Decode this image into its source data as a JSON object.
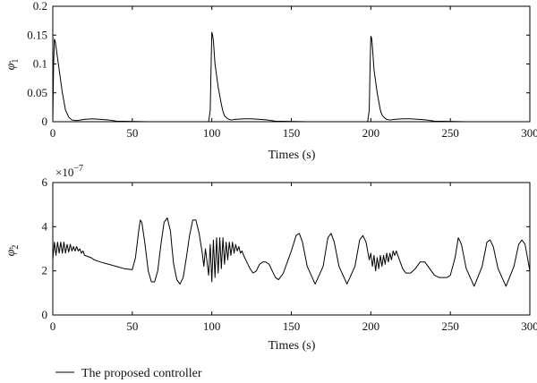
{
  "chart_data": [
    {
      "type": "line",
      "xlabel": "Times (s)",
      "ylabel_base": "φ",
      "ylabel_sub": "1",
      "xlim": [
        0,
        300
      ],
      "ylim": [
        0,
        0.2
      ],
      "xticks": [
        "0",
        "50",
        "100",
        "150",
        "200",
        "250",
        "300"
      ],
      "yticks": [
        "0",
        "0.05",
        "0.1",
        "0.15",
        "0.2"
      ],
      "grid": false,
      "series": [
        {
          "x": [
            0,
            0.5,
            1,
            1.5,
            2,
            3,
            4,
            5,
            6,
            7,
            8,
            10,
            12,
            15,
            20,
            25,
            30,
            35,
            40,
            60,
            80,
            98,
            99,
            99.5,
            100,
            100.5,
            101,
            101.5,
            102,
            103,
            104,
            105,
            106,
            107,
            108,
            110,
            112,
            115,
            120,
            125,
            130,
            135,
            140,
            160,
            180,
            198,
            199,
            199.5,
            200,
            200.5,
            201,
            201.5,
            202,
            203,
            204,
            205,
            206,
            207,
            208,
            210,
            212,
            215,
            220,
            225,
            230,
            235,
            240,
            260,
            280,
            300
          ],
          "y": [
            0,
            0.1,
            0.143,
            0.14,
            0.13,
            0.11,
            0.09,
            0.07,
            0.05,
            0.035,
            0.02,
            0.008,
            0.003,
            0.002,
            0.004,
            0.005,
            0.004,
            0.003,
            0.001,
            0,
            0,
            0,
            0.02,
            0.09,
            0.155,
            0.15,
            0.14,
            0.12,
            0.1,
            0.08,
            0.06,
            0.045,
            0.03,
            0.018,
            0.01,
            0.005,
            0.003,
            0.004,
            0.005,
            0.005,
            0.004,
            0.003,
            0.001,
            0,
            0,
            0,
            0.02,
            0.09,
            0.148,
            0.145,
            0.13,
            0.11,
            0.09,
            0.07,
            0.05,
            0.035,
            0.02,
            0.012,
            0.008,
            0.004,
            0.003,
            0.004,
            0.005,
            0.005,
            0.004,
            0.003,
            0.001,
            0,
            0,
            0
          ]
        }
      ]
    },
    {
      "type": "line",
      "xlabel": "Times (s)",
      "ylabel_base": "φ",
      "ylabel_sub": "2",
      "exponent_base": "×10",
      "exponent_power": "−7",
      "xlim": [
        0,
        300
      ],
      "ylim": [
        0,
        6
      ],
      "xticks": [
        "0",
        "50",
        "100",
        "150",
        "200",
        "250",
        "300"
      ],
      "yticks": [
        "0",
        "2",
        "4",
        "6"
      ],
      "grid": false,
      "series": [
        {
          "name": "The proposed controller",
          "x": [
            0,
            1,
            2,
            3,
            4,
            5,
            6,
            7,
            8,
            9,
            10,
            11,
            12,
            13,
            14,
            15,
            16,
            17,
            18,
            19,
            20,
            22,
            24,
            26,
            28,
            30,
            35,
            40,
            45,
            50,
            52,
            54,
            55,
            56,
            58,
            60,
            62,
            64,
            66,
            68,
            70,
            72,
            74,
            75,
            76,
            78,
            80,
            82,
            84,
            86,
            88,
            90,
            92,
            94,
            95,
            96,
            98,
            99,
            100,
            101,
            102,
            103,
            104,
            105,
            106,
            107,
            108,
            109,
            110,
            111,
            112,
            113,
            114,
            115,
            116,
            117,
            118,
            119,
            120,
            122,
            124,
            126,
            128,
            130,
            132,
            134,
            136,
            138,
            140,
            142,
            145,
            150,
            153,
            155,
            157,
            160,
            165,
            170,
            173,
            175,
            177,
            180,
            185,
            190,
            193,
            195,
            197,
            199,
            200,
            201,
            202,
            203,
            204,
            205,
            206,
            207,
            208,
            209,
            210,
            211,
            212,
            213,
            214,
            215,
            216,
            218,
            220,
            222,
            225,
            228,
            231,
            234,
            237,
            240,
            243,
            246,
            248,
            250,
            253,
            255,
            257,
            260,
            265,
            270,
            273,
            275,
            277,
            280,
            285,
            290,
            293,
            295,
            297,
            300
          ],
          "y": [
            2.5,
            3.3,
            2.7,
            3.3,
            2.8,
            3.3,
            2.8,
            3.3,
            2.8,
            3.2,
            2.85,
            3.2,
            2.9,
            3.1,
            2.9,
            3.1,
            2.9,
            3.0,
            2.8,
            2.9,
            2.7,
            2.65,
            2.6,
            2.5,
            2.45,
            2.4,
            2.3,
            2.2,
            2.1,
            2.05,
            2.6,
            3.8,
            4.3,
            4.2,
            3.2,
            2.0,
            1.5,
            1.5,
            2.0,
            3.2,
            4.2,
            4.4,
            3.8,
            3.0,
            2.3,
            1.6,
            1.4,
            1.7,
            2.6,
            3.6,
            4.3,
            4.3,
            3.7,
            2.8,
            2.2,
            3.0,
            1.8,
            3.2,
            1.5,
            3.4,
            1.7,
            3.5,
            1.9,
            3.5,
            2.1,
            3.5,
            2.3,
            3.3,
            2.5,
            3.3,
            2.7,
            3.3,
            2.8,
            3.2,
            2.9,
            3.1,
            2.8,
            2.9,
            2.7,
            2.4,
            2.1,
            1.9,
            2.0,
            2.3,
            2.4,
            2.4,
            2.3,
            2.0,
            1.7,
            1.6,
            1.9,
            2.9,
            3.6,
            3.7,
            3.3,
            2.2,
            1.4,
            2.2,
            3.5,
            3.7,
            3.3,
            2.2,
            1.4,
            2.2,
            3.4,
            3.6,
            3.3,
            2.5,
            2.8,
            2.2,
            2.7,
            2.0,
            2.6,
            2.1,
            2.7,
            2.2,
            2.7,
            2.3,
            2.8,
            2.4,
            2.8,
            2.5,
            2.9,
            2.7,
            2.9,
            2.5,
            2.1,
            1.9,
            1.9,
            2.1,
            2.4,
            2.4,
            2.1,
            1.8,
            1.7,
            1.7,
            1.7,
            1.8,
            2.6,
            3.5,
            3.2,
            2.1,
            1.3,
            2.2,
            3.3,
            3.4,
            3.1,
            2.1,
            1.3,
            2.2,
            3.2,
            3.4,
            3.2,
            2.0
          ]
        }
      ]
    }
  ]
}
